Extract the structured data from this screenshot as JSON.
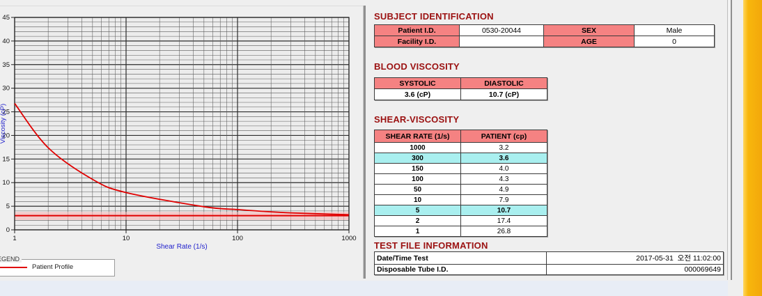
{
  "theme": {
    "title_color": "#9B1111",
    "table_header_pink": "#F58282",
    "highlight_cyan": "#A9EFEF",
    "axis_label_blue": "#2222CC",
    "curve_red": "#E00000",
    "accent_bar_orange": "#F8B60C",
    "bottom_strip_blue": "#E8EDF6"
  },
  "chart_data": {
    "type": "line",
    "title": "",
    "xlabel": "Shear Rate (1/s)",
    "ylabel": "Viscosity (cP)",
    "x_scale": "log",
    "xlim": [
      1,
      1000
    ],
    "ylim": [
      0,
      45
    ],
    "y_major_step": 5,
    "y_minor_step": 1,
    "x_decade_ticks": [
      1,
      10,
      100,
      1000
    ],
    "grid": true,
    "series": [
      {
        "name": "Patient Profile",
        "color": "#E00000",
        "x": [
          1,
          2,
          5,
          10,
          50,
          100,
          150,
          300,
          1000
        ],
        "y": [
          26.8,
          17.4,
          10.7,
          7.9,
          4.9,
          4.3,
          4.0,
          3.6,
          3.2
        ]
      }
    ],
    "reference_line": {
      "y": 3.0,
      "color": "#E00000"
    },
    "reference_band": {
      "y_low": 2.1,
      "y_high": 3.8,
      "color": "#F6B6B6"
    },
    "legend": {
      "title": "LEGEND",
      "entries": [
        {
          "label": "Patient Profile",
          "color": "#E00000"
        }
      ],
      "position": "below-left"
    }
  },
  "subject_identification": {
    "title": "SUBJECT IDENTIFICATION",
    "rows": [
      {
        "label1": "Patient I.D.",
        "value1": "0530-20044",
        "label2": "SEX",
        "value2": "Male"
      },
      {
        "label1": "Facility I.D.",
        "value1": "",
        "label2": "AGE",
        "value2": "0"
      }
    ]
  },
  "blood_viscosity": {
    "title": "BLOOD VISCOSITY",
    "headers": [
      "SYSTOLIC",
      "DIASTOLIC"
    ],
    "values": [
      "3.6 (cP)",
      "10.7 (cP)"
    ]
  },
  "shear_viscosity": {
    "title": "SHEAR-VISCOSITY",
    "headers": [
      "SHEAR RATE (1/s)",
      "PATIENT (cp)"
    ],
    "rows": [
      {
        "rate": "1000",
        "patient": "3.2",
        "highlight": false
      },
      {
        "rate": "300",
        "patient": "3.6",
        "highlight": true
      },
      {
        "rate": "150",
        "patient": "4.0",
        "highlight": false
      },
      {
        "rate": "100",
        "patient": "4.3",
        "highlight": false
      },
      {
        "rate": "50",
        "patient": "4.9",
        "highlight": false
      },
      {
        "rate": "10",
        "patient": "7.9",
        "highlight": false
      },
      {
        "rate": "5",
        "patient": "10.7",
        "highlight": true
      },
      {
        "rate": "2",
        "patient": "17.4",
        "highlight": false
      },
      {
        "rate": "1",
        "patient": "26.8",
        "highlight": false
      }
    ]
  },
  "test_file_information": {
    "title": "TEST FILE INFORMATION",
    "rows": [
      {
        "label": "Date/Time Test",
        "value": "2017-05-31  오전 11:02:00"
      },
      {
        "label": "Disposable Tube I.D.",
        "value": "000069649"
      }
    ]
  }
}
